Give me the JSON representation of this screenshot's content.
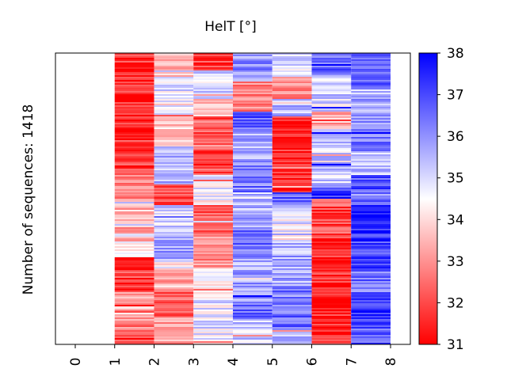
{
  "chart_data": {
    "type": "heatmap",
    "title": "HelT [°]",
    "ylabel": "Number of sequences: 1418",
    "xlabel": "",
    "columns": [
      "0",
      "1",
      "2",
      "3",
      "4",
      "5",
      "6",
      "7",
      "8"
    ],
    "colorbar": {
      "min": 31,
      "max": 38,
      "ticks": [
        "31",
        "32",
        "33",
        "34",
        "35",
        "36",
        "37",
        "38"
      ],
      "colors": {
        "low": "#ff0000",
        "mid": "#ffffff",
        "high": "#0000ff"
      }
    },
    "rows": 1418,
    "column_blocks": [
      {
        "column": "1",
        "segments": [
          {
            "start": 0.0,
            "end": 0.03,
            "value": 31.7
          },
          {
            "start": 0.03,
            "end": 0.14,
            "value": 31.5
          },
          {
            "start": 0.14,
            "end": 0.3,
            "value": 31.4
          },
          {
            "start": 0.3,
            "end": 0.42,
            "value": 31.8
          },
          {
            "start": 0.42,
            "end": 0.5,
            "value": 32.8
          },
          {
            "start": 0.5,
            "end": 0.62,
            "value": 33.6
          },
          {
            "start": 0.62,
            "end": 0.7,
            "value": 34.4
          },
          {
            "start": 0.7,
            "end": 0.82,
            "value": 31.8
          },
          {
            "start": 0.82,
            "end": 0.88,
            "value": 33.4
          },
          {
            "start": 0.88,
            "end": 0.95,
            "value": 32.8
          },
          {
            "start": 0.95,
            "end": 1.0,
            "value": 31.9
          }
        ]
      },
      {
        "column": "2",
        "segments": [
          {
            "start": 0.0,
            "end": 0.08,
            "value": 33.6
          },
          {
            "start": 0.08,
            "end": 0.22,
            "value": 34.8
          },
          {
            "start": 0.22,
            "end": 0.32,
            "value": 33.8
          },
          {
            "start": 0.32,
            "end": 0.45,
            "value": 35.4
          },
          {
            "start": 0.45,
            "end": 0.52,
            "value": 32.0
          },
          {
            "start": 0.52,
            "end": 0.64,
            "value": 35.2
          },
          {
            "start": 0.64,
            "end": 0.72,
            "value": 35.8
          },
          {
            "start": 0.72,
            "end": 0.82,
            "value": 33.4
          },
          {
            "start": 0.82,
            "end": 0.9,
            "value": 32.2
          },
          {
            "start": 0.9,
            "end": 1.0,
            "value": 33.2
          }
        ]
      },
      {
        "column": "3",
        "segments": [
          {
            "start": 0.0,
            "end": 0.06,
            "value": 31.8
          },
          {
            "start": 0.06,
            "end": 0.16,
            "value": 35.0
          },
          {
            "start": 0.16,
            "end": 0.22,
            "value": 33.8
          },
          {
            "start": 0.22,
            "end": 0.3,
            "value": 32.2
          },
          {
            "start": 0.3,
            "end": 0.42,
            "value": 32.0
          },
          {
            "start": 0.42,
            "end": 0.52,
            "value": 34.6
          },
          {
            "start": 0.52,
            "end": 0.62,
            "value": 32.2
          },
          {
            "start": 0.62,
            "end": 0.74,
            "value": 32.8
          },
          {
            "start": 0.74,
            "end": 0.84,
            "value": 34.4
          },
          {
            "start": 0.84,
            "end": 1.0,
            "value": 34.8
          }
        ]
      },
      {
        "column": "4",
        "segments": [
          {
            "start": 0.0,
            "end": 0.1,
            "value": 36.0
          },
          {
            "start": 0.1,
            "end": 0.2,
            "value": 32.9
          },
          {
            "start": 0.2,
            "end": 0.26,
            "value": 36.8
          },
          {
            "start": 0.26,
            "end": 0.38,
            "value": 35.6
          },
          {
            "start": 0.38,
            "end": 0.48,
            "value": 36.3
          },
          {
            "start": 0.48,
            "end": 0.6,
            "value": 35.5
          },
          {
            "start": 0.6,
            "end": 0.7,
            "value": 36.5
          },
          {
            "start": 0.7,
            "end": 0.86,
            "value": 35.7
          },
          {
            "start": 0.86,
            "end": 0.92,
            "value": 36.4
          },
          {
            "start": 0.92,
            "end": 1.0,
            "value": 35.2
          }
        ]
      },
      {
        "column": "5",
        "segments": [
          {
            "start": 0.0,
            "end": 0.08,
            "value": 35.0
          },
          {
            "start": 0.08,
            "end": 0.16,
            "value": 33.0
          },
          {
            "start": 0.16,
            "end": 0.22,
            "value": 35.4
          },
          {
            "start": 0.22,
            "end": 0.48,
            "value": 31.5
          },
          {
            "start": 0.48,
            "end": 0.52,
            "value": 36.8
          },
          {
            "start": 0.52,
            "end": 0.64,
            "value": 34.8
          },
          {
            "start": 0.64,
            "end": 0.8,
            "value": 35.6
          },
          {
            "start": 0.8,
            "end": 0.88,
            "value": 36.2
          },
          {
            "start": 0.88,
            "end": 0.95,
            "value": 36.5
          },
          {
            "start": 0.95,
            "end": 1.0,
            "value": 35.2
          }
        ]
      },
      {
        "column": "6",
        "segments": [
          {
            "start": 0.0,
            "end": 0.08,
            "value": 36.5
          },
          {
            "start": 0.08,
            "end": 0.2,
            "value": 35.0
          },
          {
            "start": 0.2,
            "end": 0.26,
            "value": 33.4
          },
          {
            "start": 0.26,
            "end": 0.46,
            "value": 35.2
          },
          {
            "start": 0.46,
            "end": 0.5,
            "value": 37.4
          },
          {
            "start": 0.5,
            "end": 0.62,
            "value": 32.0
          },
          {
            "start": 0.62,
            "end": 0.8,
            "value": 31.6
          },
          {
            "start": 0.8,
            "end": 0.88,
            "value": 31.2
          },
          {
            "start": 0.88,
            "end": 1.0,
            "value": 31.5
          }
        ]
      },
      {
        "column": "7",
        "segments": [
          {
            "start": 0.0,
            "end": 0.12,
            "value": 36.8
          },
          {
            "start": 0.12,
            "end": 0.22,
            "value": 35.6
          },
          {
            "start": 0.22,
            "end": 0.34,
            "value": 36.2
          },
          {
            "start": 0.34,
            "end": 0.42,
            "value": 35.4
          },
          {
            "start": 0.42,
            "end": 0.52,
            "value": 37.0
          },
          {
            "start": 0.52,
            "end": 0.62,
            "value": 37.6
          },
          {
            "start": 0.62,
            "end": 0.74,
            "value": 37.2
          },
          {
            "start": 0.74,
            "end": 0.82,
            "value": 36.4
          },
          {
            "start": 0.82,
            "end": 0.92,
            "value": 37.4
          },
          {
            "start": 0.92,
            "end": 1.0,
            "value": 36.8
          }
        ]
      }
    ]
  }
}
